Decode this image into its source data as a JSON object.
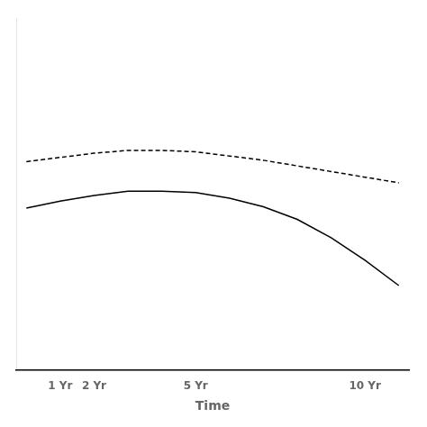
{
  "chart_data": {
    "type": "line",
    "x_label": "Time",
    "x": [
      0,
      1,
      2,
      3,
      4,
      5,
      6,
      7,
      8,
      9,
      10,
      11
    ],
    "series": [
      {
        "color": "#000000",
        "line_style": "solid",
        "values": [
          0.615,
          0.62,
          0.624,
          0.627,
          0.627,
          0.626,
          0.622,
          0.616,
          0.607,
          0.594,
          0.578,
          0.56
        ]
      },
      {
        "color": "#000000",
        "line_style": "dashed",
        "values": [
          0.648,
          0.651,
          0.654,
          0.656,
          0.656,
          0.655,
          0.652,
          0.649,
          0.645,
          0.641,
          0.637,
          0.633
        ]
      }
    ],
    "xlim": [
      -0.3,
      11.3
    ],
    "xticks": [
      {
        "value": 1,
        "label": "1 Yr"
      },
      {
        "value": 2,
        "label": "2 Yr"
      },
      {
        "value": 5,
        "label": "5 Yr"
      },
      {
        "value": 10,
        "label": "10 Yr"
      }
    ],
    "ylim": [
      0.5,
      0.75
    ],
    "tick_labels": "x",
    "grid": false
  }
}
